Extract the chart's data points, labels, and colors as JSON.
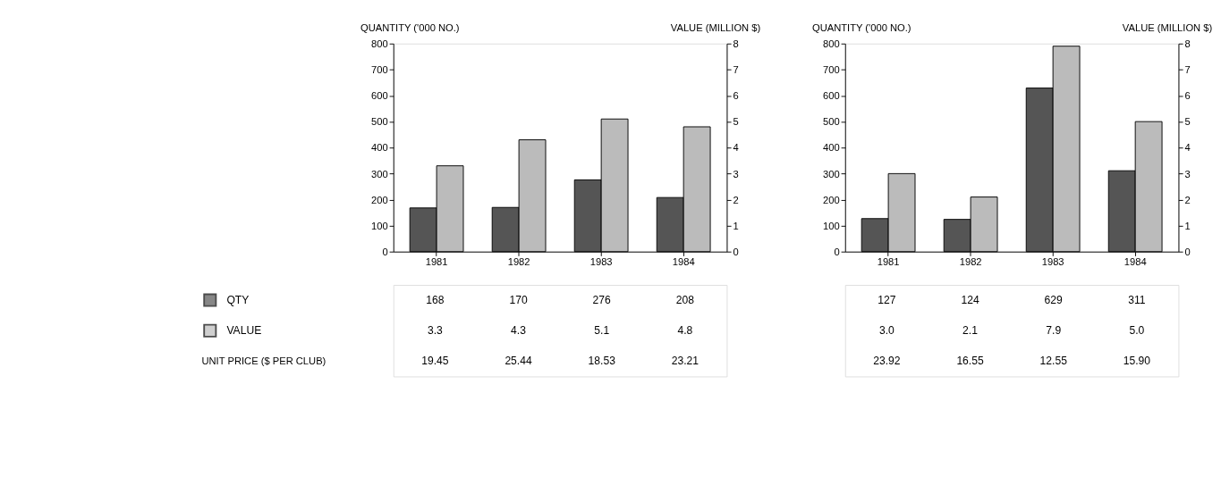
{
  "chart_data": [
    {
      "type": "bar",
      "categories": [
        "1981",
        "1982",
        "1983",
        "1984"
      ],
      "ylabel": "QUANTITY ('000 NO.)",
      "y2label": "VALUE (MILLION $)",
      "ylim": [
        0,
        800
      ],
      "yticks": [
        0,
        100,
        200,
        300,
        400,
        500,
        600,
        700,
        800
      ],
      "y2lim": [
        0,
        8
      ],
      "y2ticks": [
        0,
        1,
        2,
        3,
        4,
        5,
        6,
        7,
        8
      ],
      "grid": false,
      "legend": "bottom left",
      "series": [
        {
          "name": "QTY",
          "color": "#555555",
          "values": [
            168,
            170,
            276,
            208
          ],
          "value_labels": [
            "168",
            "170",
            "276",
            "208"
          ]
        },
        {
          "name": "VALUE",
          "color": "#bbbbbb",
          "axis": "y2",
          "values": [
            3.3,
            4.3,
            5.1,
            4.8
          ],
          "value_labels": [
            "3.3",
            "4.3",
            "5.1",
            "4.8"
          ]
        }
      ],
      "annotations": [
        "UNIT PRICE ($ PER CLUB)",
        "19.45",
        "25.44",
        "18.53",
        "23.21"
      ]
    },
    {
      "type": "bar",
      "categories": [
        "1981",
        "1982",
        "1983",
        "1984"
      ],
      "ylabel": "QUANTITY ('000 NO.)",
      "y2label": "VALUE (MILLION $)",
      "ylim": [
        0,
        800
      ],
      "yticks": [
        0,
        100,
        200,
        300,
        400,
        500,
        600,
        700,
        800
      ],
      "y2lim": [
        0,
        8
      ],
      "y2ticks": [
        0,
        1,
        2,
        3,
        4,
        5,
        6,
        7,
        8
      ],
      "grid": false,
      "series": [
        {
          "color": "#555555",
          "values": [
            127,
            124,
            629,
            311
          ],
          "value_labels": [
            "127",
            "124",
            "629",
            "311"
          ]
        },
        {
          "color": "#bbbbbb",
          "axis": "y2",
          "values": [
            3.0,
            2.1,
            7.9,
            5.0
          ],
          "value_labels": [
            "3.0",
            "2.1",
            "7.9",
            "5.0"
          ]
        }
      ],
      "annotations": [
        "23.92",
        "16.55",
        "12.55",
        "15.90"
      ]
    }
  ]
}
